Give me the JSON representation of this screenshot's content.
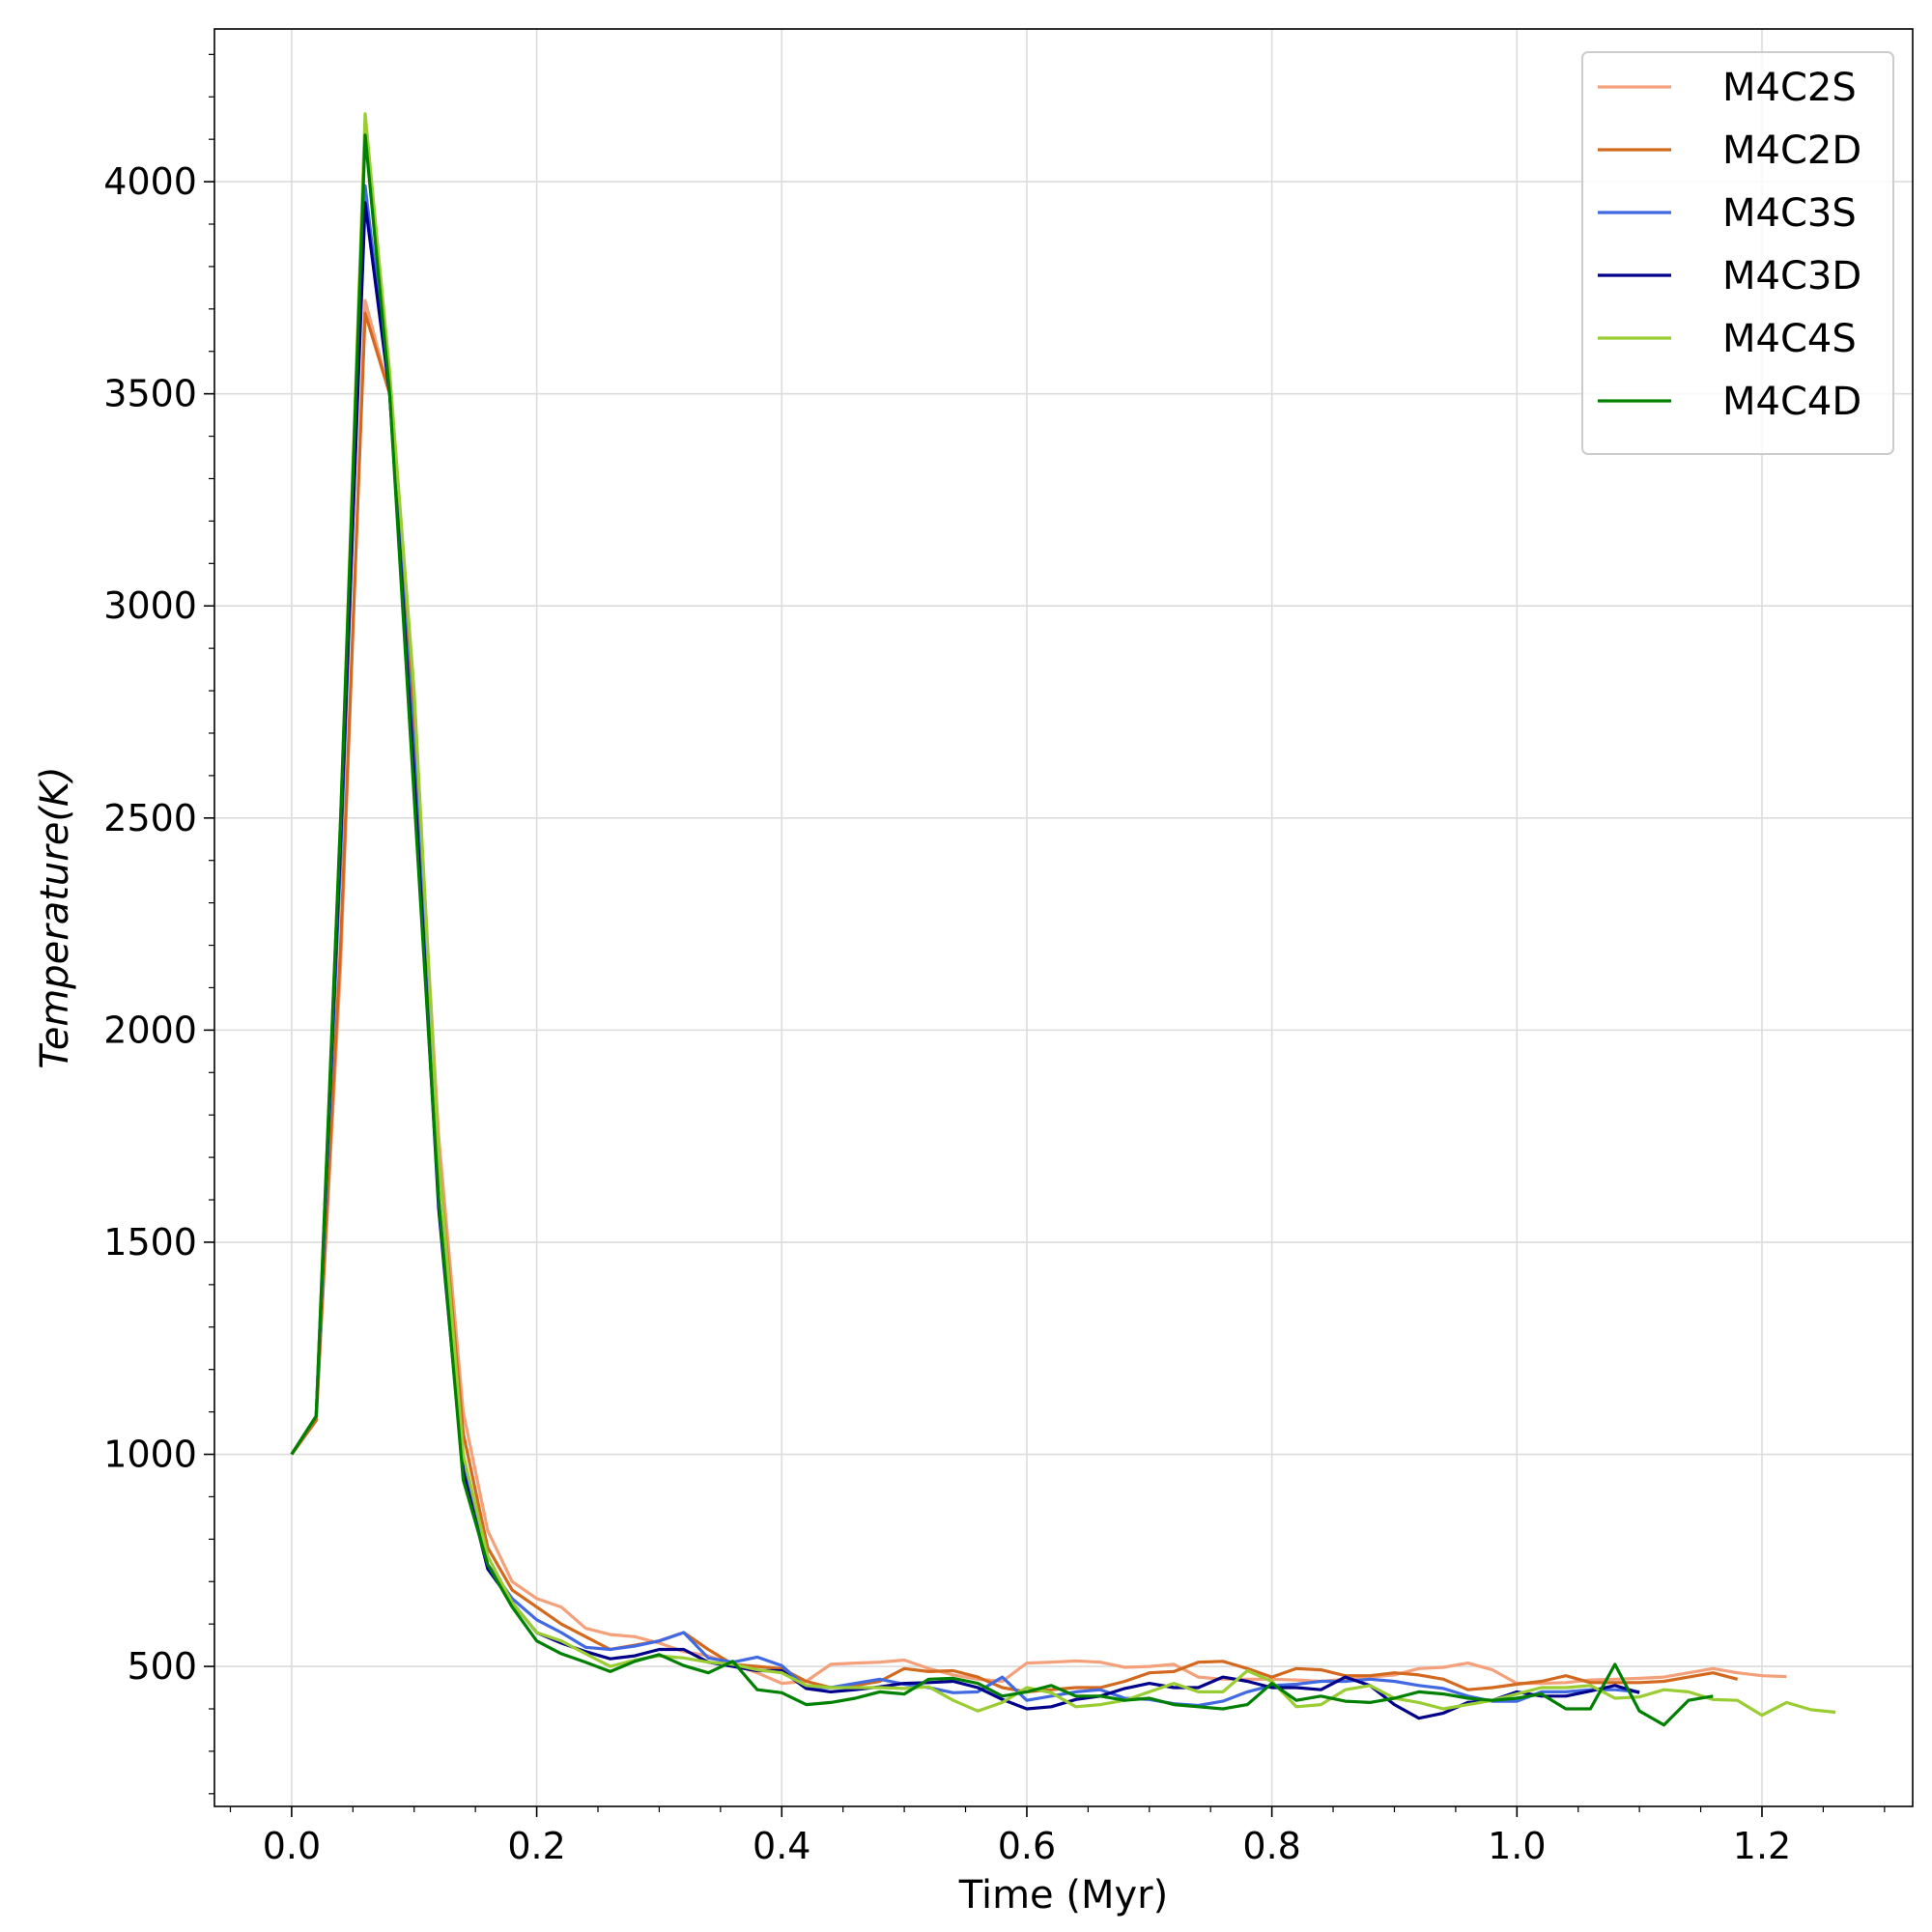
{
  "chart_data": {
    "type": "line",
    "title": "",
    "xlabel": "Time (Myr)",
    "ylabel": "Temperature(K)",
    "xlim": [
      -0.063,
      1.323
    ],
    "ylim": [
      170,
      4360
    ],
    "xticks": [
      0.0,
      0.2,
      0.4,
      0.6,
      0.8,
      1.0,
      1.2
    ],
    "xtick_labels": [
      "0.0",
      "0.2",
      "0.4",
      "0.6",
      "0.8",
      "1.0",
      "1.2"
    ],
    "yticks": [
      500,
      1000,
      1500,
      2000,
      2500,
      3000,
      3500,
      4000
    ],
    "ytick_labels": [
      "500",
      "1000",
      "1500",
      "2000",
      "2500",
      "3000",
      "3500",
      "4000"
    ],
    "grid": true,
    "legend_position": "top-right",
    "series": [
      {
        "name": "M4C2S",
        "color": "#f4a07a",
        "x": [
          0,
          0.02,
          0.04,
          0.06,
          0.08,
          0.1,
          0.12,
          0.14,
          0.16,
          0.18,
          0.2,
          0.22,
          0.24,
          0.26,
          0.28,
          0.3,
          0.32,
          0.34,
          0.36,
          0.38,
          0.4,
          0.42,
          0.44,
          0.46,
          0.48,
          0.5,
          0.52,
          0.54,
          0.56,
          0.58,
          0.6,
          0.62,
          0.64,
          0.66,
          0.68,
          0.7,
          0.72,
          0.74,
          0.76,
          0.78,
          0.8,
          0.82,
          0.84,
          0.86,
          0.88,
          0.9,
          0.92,
          0.94,
          0.96,
          0.98,
          1.0,
          1.02,
          1.04,
          1.06,
          1.08,
          1.1,
          1.12,
          1.14,
          1.16,
          1.18,
          1.2,
          1.22
        ],
        "y": [
          1000,
          1080,
          2150,
          3720,
          3500,
          2750,
          1750,
          1100,
          820,
          700,
          660,
          640,
          590,
          575,
          570,
          555,
          535,
          525,
          505,
          485,
          460,
          465,
          505,
          508,
          510,
          515,
          495,
          480,
          470,
          465,
          508,
          510,
          513,
          510,
          498,
          500,
          505,
          475,
          470,
          470,
          470,
          468,
          465,
          470,
          475,
          480,
          495,
          498,
          508,
          492,
          460,
          460,
          462,
          468,
          470,
          472,
          475,
          485,
          495,
          485,
          478,
          476
        ]
      },
      {
        "name": "M4C2D",
        "color": "#d2691e",
        "x": [
          0,
          0.02,
          0.04,
          0.06,
          0.08,
          0.1,
          0.12,
          0.14,
          0.16,
          0.18,
          0.2,
          0.22,
          0.24,
          0.26,
          0.28,
          0.3,
          0.32,
          0.34,
          0.36,
          0.38,
          0.4,
          0.42,
          0.44,
          0.46,
          0.48,
          0.5,
          0.52,
          0.54,
          0.56,
          0.58,
          0.6,
          0.62,
          0.64,
          0.66,
          0.68,
          0.7,
          0.72,
          0.74,
          0.76,
          0.78,
          0.8,
          0.82,
          0.84,
          0.86,
          0.88,
          0.9,
          0.92,
          0.94,
          0.96,
          0.98,
          1.0,
          1.02,
          1.04,
          1.06,
          1.08,
          1.1,
          1.12,
          1.14,
          1.16,
          1.18
        ],
        "y": [
          1000,
          1080,
          2200,
          3690,
          3500,
          2700,
          1700,
          1050,
          780,
          680,
          640,
          600,
          570,
          540,
          550,
          560,
          580,
          540,
          505,
          500,
          495,
          465,
          450,
          455,
          465,
          495,
          488,
          490,
          475,
          450,
          440,
          445,
          450,
          450,
          465,
          485,
          488,
          510,
          512,
          495,
          475,
          495,
          492,
          478,
          478,
          485,
          480,
          470,
          445,
          450,
          458,
          465,
          478,
          462,
          462,
          462,
          465,
          475,
          485,
          470
        ]
      },
      {
        "name": "M4C3S",
        "color": "#4169e1",
        "x": [
          0,
          0.02,
          0.04,
          0.06,
          0.08,
          0.1,
          0.12,
          0.14,
          0.16,
          0.18,
          0.2,
          0.22,
          0.24,
          0.26,
          0.28,
          0.3,
          0.32,
          0.34,
          0.36,
          0.38,
          0.4,
          0.42,
          0.44,
          0.46,
          0.48,
          0.5,
          0.52,
          0.54,
          0.56,
          0.58,
          0.6,
          0.62,
          0.64,
          0.66,
          0.68,
          0.7,
          0.72,
          0.74,
          0.76,
          0.78,
          0.8,
          0.82,
          0.84,
          0.86,
          0.88,
          0.9,
          0.92,
          0.94,
          0.96,
          0.98,
          1.0,
          1.02,
          1.04,
          1.06,
          1.08,
          1.1
        ],
        "y": [
          1000,
          1090,
          2400,
          3990,
          3500,
          2650,
          1600,
          980,
          740,
          660,
          610,
          580,
          545,
          540,
          548,
          560,
          580,
          520,
          510,
          522,
          502,
          450,
          450,
          460,
          470,
          458,
          450,
          438,
          440,
          475,
          420,
          430,
          440,
          445,
          425,
          422,
          412,
          408,
          418,
          440,
          455,
          458,
          465,
          465,
          470,
          465,
          455,
          448,
          430,
          418,
          418,
          440,
          440,
          445,
          445,
          440
        ]
      },
      {
        "name": "M4C3D",
        "color": "#00008b",
        "x": [
          0,
          0.02,
          0.04,
          0.06,
          0.08,
          0.1,
          0.12,
          0.14,
          0.16,
          0.18,
          0.2,
          0.22,
          0.24,
          0.26,
          0.28,
          0.3,
          0.32,
          0.34,
          0.36,
          0.38,
          0.4,
          0.42,
          0.44,
          0.46,
          0.48,
          0.5,
          0.52,
          0.54,
          0.56,
          0.58,
          0.6,
          0.62,
          0.64,
          0.66,
          0.68,
          0.7,
          0.72,
          0.74,
          0.76,
          0.78,
          0.8,
          0.82,
          0.84,
          0.86,
          0.88,
          0.9,
          0.92,
          0.94,
          0.96,
          0.98,
          1.0,
          1.02,
          1.04,
          1.06,
          1.08,
          1.1
        ],
        "y": [
          1000,
          1090,
          2450,
          3950,
          3500,
          2600,
          1580,
          960,
          730,
          650,
          580,
          555,
          535,
          518,
          525,
          540,
          540,
          510,
          500,
          490,
          490,
          448,
          440,
          445,
          452,
          460,
          462,
          465,
          450,
          422,
          400,
          405,
          422,
          430,
          448,
          460,
          450,
          450,
          475,
          465,
          450,
          450,
          445,
          475,
          455,
          410,
          378,
          390,
          415,
          420,
          440,
          430,
          430,
          442,
          455,
          438
        ]
      },
      {
        "name": "M4C4S",
        "color": "#9acd32",
        "x": [
          0,
          0.02,
          0.04,
          0.06,
          0.08,
          0.1,
          0.12,
          0.14,
          0.16,
          0.18,
          0.2,
          0.22,
          0.24,
          0.26,
          0.28,
          0.3,
          0.32,
          0.34,
          0.36,
          0.38,
          0.4,
          0.42,
          0.44,
          0.46,
          0.48,
          0.5,
          0.52,
          0.54,
          0.56,
          0.58,
          0.6,
          0.62,
          0.64,
          0.66,
          0.68,
          0.7,
          0.72,
          0.74,
          0.76,
          0.78,
          0.8,
          0.82,
          0.84,
          0.86,
          0.88,
          0.9,
          0.92,
          0.94,
          0.96,
          0.98,
          1.0,
          1.02,
          1.04,
          1.06,
          1.08,
          1.1,
          1.12,
          1.14,
          1.16,
          1.18,
          1.2,
          1.22,
          1.24,
          1.26
        ],
        "y": [
          1000,
          1090,
          2500,
          4160,
          3550,
          2800,
          1700,
          1000,
          760,
          650,
          580,
          560,
          530,
          500,
          515,
          525,
          520,
          510,
          505,
          492,
          485,
          455,
          450,
          450,
          450,
          448,
          452,
          420,
          395,
          415,
          450,
          438,
          405,
          410,
          420,
          440,
          460,
          440,
          440,
          490,
          465,
          405,
          410,
          445,
          455,
          425,
          415,
          400,
          410,
          420,
          435,
          450,
          450,
          455,
          425,
          428,
          445,
          440,
          422,
          420,
          385,
          415,
          398,
          392
        ]
      },
      {
        "name": "M4C4D",
        "color": "#008000",
        "x": [
          0,
          0.02,
          0.04,
          0.06,
          0.08,
          0.1,
          0.12,
          0.14,
          0.16,
          0.18,
          0.2,
          0.22,
          0.24,
          0.26,
          0.28,
          0.3,
          0.32,
          0.34,
          0.36,
          0.38,
          0.4,
          0.42,
          0.44,
          0.46,
          0.48,
          0.5,
          0.52,
          0.54,
          0.56,
          0.58,
          0.6,
          0.62,
          0.64,
          0.66,
          0.68,
          0.7,
          0.72,
          0.74,
          0.76,
          0.78,
          0.8,
          0.82,
          0.84,
          0.86,
          0.88,
          0.9,
          0.92,
          0.94,
          0.96,
          0.98,
          1.0,
          1.02,
          1.04,
          1.06,
          1.08,
          1.1,
          1.12,
          1.14,
          1.16
        ],
        "y": [
          1000,
          1090,
          2500,
          4110,
          3500,
          2550,
          1600,
          940,
          740,
          640,
          560,
          530,
          510,
          488,
          512,
          528,
          502,
          485,
          512,
          445,
          438,
          410,
          415,
          425,
          440,
          435,
          470,
          472,
          460,
          430,
          440,
          455,
          430,
          430,
          420,
          425,
          410,
          405,
          400,
          410,
          460,
          420,
          430,
          418,
          415,
          425,
          440,
          435,
          425,
          420,
          425,
          435,
          400,
          400,
          505,
          395,
          362,
          420,
          430
        ]
      }
    ]
  }
}
